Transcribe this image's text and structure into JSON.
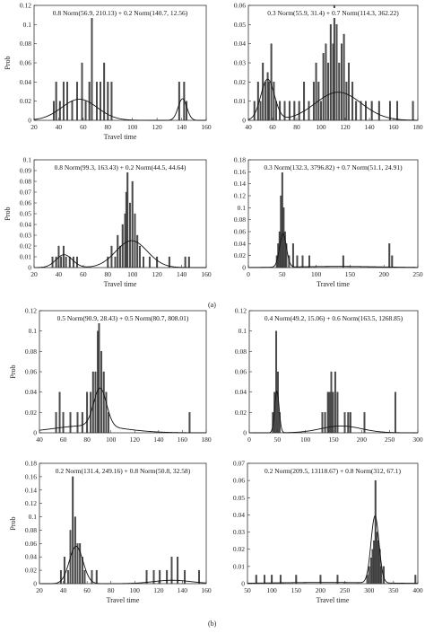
{
  "figure": {
    "group_labels": [
      "(a)",
      "(b)"
    ]
  },
  "chart_data": [
    {
      "type": "bar",
      "title": "0.8 Norm(56.9, 210.13) + 0.2 Norm(140.7, 12.56)",
      "xlabel": "Travel time",
      "ylabel": "Prob",
      "xlim": [
        20,
        160
      ],
      "ylim": [
        0,
        0.12
      ],
      "xticks": [
        20,
        40,
        60,
        80,
        100,
        120,
        140,
        160
      ],
      "yticks": [
        0,
        0.02,
        0.04,
        0.06,
        0.08,
        0.1,
        0.12
      ],
      "bars": [
        {
          "x": 36,
          "y": 0.02
        },
        {
          "x": 38,
          "y": 0.04
        },
        {
          "x": 41,
          "y": 0.02
        },
        {
          "x": 44,
          "y": 0.04
        },
        {
          "x": 47,
          "y": 0.04
        },
        {
          "x": 51,
          "y": 0.02
        },
        {
          "x": 55,
          "y": 0.04
        },
        {
          "x": 59,
          "y": 0.06
        },
        {
          "x": 62,
          "y": 0.02
        },
        {
          "x": 65,
          "y": 0.04
        },
        {
          "x": 67,
          "y": 0.11
        },
        {
          "x": 71,
          "y": 0.04
        },
        {
          "x": 74,
          "y": 0.04
        },
        {
          "x": 77,
          "y": 0.06
        },
        {
          "x": 80,
          "y": 0.04
        },
        {
          "x": 83,
          "y": 0.04
        },
        {
          "x": 138,
          "y": 0.04
        },
        {
          "x": 142,
          "y": 0.04
        },
        {
          "x": 144,
          "y": 0.02
        }
      ],
      "curve": [
        {
          "w": 0.8,
          "mu": 56.9,
          "var": 210.13
        },
        {
          "w": 0.2,
          "mu": 140.7,
          "var": 12.56
        }
      ],
      "grid": false,
      "legend": "none"
    },
    {
      "type": "bar",
      "title": "0.3 Norm(55.9, 31.4) + 0.7 Norm(114.3, 362.22)",
      "xlabel": "",
      "ylabel": "",
      "xlim": [
        40,
        180
      ],
      "ylim": [
        0,
        0.06
      ],
      "xticks": [
        40,
        60,
        80,
        100,
        120,
        140,
        160,
        180
      ],
      "yticks": [
        0,
        0.01,
        0.02,
        0.03,
        0.04,
        0.05,
        0.06
      ],
      "bars": [
        {
          "x": 45,
          "y": 0.01
        },
        {
          "x": 48,
          "y": 0.02
        },
        {
          "x": 50,
          "y": 0.01
        },
        {
          "x": 52,
          "y": 0.03
        },
        {
          "x": 54,
          "y": 0.02
        },
        {
          "x": 56,
          "y": 0.025
        },
        {
          "x": 57,
          "y": 0.02
        },
        {
          "x": 59,
          "y": 0.04
        },
        {
          "x": 61,
          "y": 0.02
        },
        {
          "x": 63,
          "y": 0.01
        },
        {
          "x": 66,
          "y": 0.01
        },
        {
          "x": 70,
          "y": 0.01
        },
        {
          "x": 74,
          "y": 0.01
        },
        {
          "x": 78,
          "y": 0.01
        },
        {
          "x": 82,
          "y": 0.01
        },
        {
          "x": 86,
          "y": 0.02
        },
        {
          "x": 90,
          "y": 0.01
        },
        {
          "x": 94,
          "y": 0.02
        },
        {
          "x": 96,
          "y": 0.03
        },
        {
          "x": 98,
          "y": 0.02
        },
        {
          "x": 100,
          "y": 0.01
        },
        {
          "x": 102,
          "y": 0.035
        },
        {
          "x": 104,
          "y": 0.04
        },
        {
          "x": 106,
          "y": 0.03
        },
        {
          "x": 108,
          "y": 0.05
        },
        {
          "x": 110,
          "y": 0.04
        },
        {
          "x": 111,
          "y": 0.06
        },
        {
          "x": 113,
          "y": 0.05
        },
        {
          "x": 115,
          "y": 0.03
        },
        {
          "x": 117,
          "y": 0.04
        },
        {
          "x": 119,
          "y": 0.045
        },
        {
          "x": 121,
          "y": 0.02
        },
        {
          "x": 123,
          "y": 0.03
        },
        {
          "x": 126,
          "y": 0.02
        },
        {
          "x": 129,
          "y": 0.01
        },
        {
          "x": 133,
          "y": 0.01
        },
        {
          "x": 137,
          "y": 0.01
        },
        {
          "x": 142,
          "y": 0.01
        },
        {
          "x": 148,
          "y": 0.01
        },
        {
          "x": 157,
          "y": 0.01
        },
        {
          "x": 163,
          "y": 0.01
        },
        {
          "x": 176,
          "y": 0.01
        }
      ],
      "curve": [
        {
          "w": 0.3,
          "mu": 55.9,
          "var": 31.4
        },
        {
          "w": 0.7,
          "mu": 114.3,
          "var": 362.22
        }
      ],
      "grid": false,
      "legend": "none"
    },
    {
      "type": "bar",
      "title": "0.8 Norm(99.3, 163.43) + 0.2 Norm(44.5, 44.64)",
      "xlabel": "Travel time",
      "ylabel": "Prob",
      "xlim": [
        20,
        160
      ],
      "ylim": [
        0,
        0.1
      ],
      "xticks": [
        20,
        40,
        60,
        80,
        100,
        120,
        140,
        160
      ],
      "yticks": [
        0,
        0.01,
        0.02,
        0.03,
        0.04,
        0.05,
        0.06,
        0.07,
        0.08,
        0.09,
        0.1
      ],
      "bars": [
        {
          "x": 35,
          "y": 0.01
        },
        {
          "x": 38,
          "y": 0.01
        },
        {
          "x": 40,
          "y": 0.02
        },
        {
          "x": 42,
          "y": 0.01
        },
        {
          "x": 44,
          "y": 0.02
        },
        {
          "x": 46,
          "y": 0.01
        },
        {
          "x": 49,
          "y": 0.01
        },
        {
          "x": 52,
          "y": 0.01
        },
        {
          "x": 55,
          "y": 0.01
        },
        {
          "x": 80,
          "y": 0.01
        },
        {
          "x": 83,
          "y": 0.02
        },
        {
          "x": 86,
          "y": 0.01
        },
        {
          "x": 88,
          "y": 0.03
        },
        {
          "x": 90,
          "y": 0.02
        },
        {
          "x": 92,
          "y": 0.04
        },
        {
          "x": 94,
          "y": 0.05
        },
        {
          "x": 95,
          "y": 0.07
        },
        {
          "x": 96,
          "y": 0.09
        },
        {
          "x": 98,
          "y": 0.06
        },
        {
          "x": 100,
          "y": 0.08
        },
        {
          "x": 102,
          "y": 0.05
        },
        {
          "x": 104,
          "y": 0.03
        },
        {
          "x": 106,
          "y": 0.02
        },
        {
          "x": 109,
          "y": 0.01
        },
        {
          "x": 114,
          "y": 0.01
        },
        {
          "x": 120,
          "y": 0.01
        },
        {
          "x": 130,
          "y": 0.01
        },
        {
          "x": 143,
          "y": 0.01
        },
        {
          "x": 146,
          "y": 0.01
        }
      ],
      "curve": [
        {
          "w": 0.8,
          "mu": 99.3,
          "var": 163.43
        },
        {
          "w": 0.2,
          "mu": 44.5,
          "var": 44.64
        }
      ],
      "grid": false,
      "legend": "none"
    },
    {
      "type": "bar",
      "title": "0.3 Norm(132.3, 3796.82) + 0.7 Norm(51.1, 24.91)",
      "xlabel": "Travel time",
      "ylabel": "",
      "xlim": [
        0,
        250
      ],
      "ylim": [
        0,
        0.18
      ],
      "xticks": [
        0,
        50,
        100,
        150,
        200,
        250
      ],
      "yticks": [
        0,
        0.02,
        0.04,
        0.06,
        0.08,
        0.1,
        0.12,
        0.14,
        0.16,
        0.18
      ],
      "bars": [
        {
          "x": 42,
          "y": 0.02
        },
        {
          "x": 44,
          "y": 0.04
        },
        {
          "x": 46,
          "y": 0.06
        },
        {
          "x": 48,
          "y": 0.12
        },
        {
          "x": 50,
          "y": 0.16
        },
        {
          "x": 52,
          "y": 0.1
        },
        {
          "x": 54,
          "y": 0.06
        },
        {
          "x": 56,
          "y": 0.04
        },
        {
          "x": 60,
          "y": 0.02
        },
        {
          "x": 66,
          "y": 0.04
        },
        {
          "x": 72,
          "y": 0.02
        },
        {
          "x": 80,
          "y": 0.02
        },
        {
          "x": 90,
          "y": 0.02
        },
        {
          "x": 140,
          "y": 0.02
        },
        {
          "x": 208,
          "y": 0.04
        },
        {
          "x": 212,
          "y": 0.02
        }
      ],
      "curve": [
        {
          "w": 0.3,
          "mu": 132.3,
          "var": 3796.82
        },
        {
          "w": 0.7,
          "mu": 51.1,
          "var": 24.91
        }
      ],
      "grid": false,
      "legend": "none"
    },
    {
      "type": "bar",
      "title": "0.5 Norm(90.9, 28.43) + 0.5 Norm(80.7, 808.01)",
      "xlabel": "",
      "ylabel": "Prob",
      "xlim": [
        40,
        180
      ],
      "ylim": [
        0,
        0.12
      ],
      "xticks": [
        40,
        60,
        80,
        100,
        120,
        140,
        160,
        180
      ],
      "yticks": [
        0,
        0.02,
        0.04,
        0.06,
        0.08,
        0.1,
        0.12
      ],
      "bars": [
        {
          "x": 54,
          "y": 0.02
        },
        {
          "x": 57,
          "y": 0.04
        },
        {
          "x": 60,
          "y": 0.02
        },
        {
          "x": 66,
          "y": 0.02
        },
        {
          "x": 72,
          "y": 0.02
        },
        {
          "x": 76,
          "y": 0.02
        },
        {
          "x": 80,
          "y": 0.04
        },
        {
          "x": 83,
          "y": 0.04
        },
        {
          "x": 85,
          "y": 0.06
        },
        {
          "x": 87,
          "y": 0.06
        },
        {
          "x": 89,
          "y": 0.1
        },
        {
          "x": 90,
          "y": 0.11
        },
        {
          "x": 92,
          "y": 0.08
        },
        {
          "x": 94,
          "y": 0.06
        },
        {
          "x": 96,
          "y": 0.04
        },
        {
          "x": 98,
          "y": 0.02
        },
        {
          "x": 166,
          "y": 0.02
        }
      ],
      "curve": [
        {
          "w": 0.5,
          "mu": 90.9,
          "var": 28.43
        },
        {
          "w": 0.5,
          "mu": 80.7,
          "var": 808.01
        }
      ],
      "grid": false,
      "legend": "none"
    },
    {
      "type": "bar",
      "title": "0.4 Norm(49.2, 15.06) + 0.6 Norm(163.5, 1268.85)",
      "xlabel": "",
      "ylabel": "",
      "xlim": [
        0,
        300
      ],
      "ylim": [
        0,
        0.12
      ],
      "xticks": [
        0,
        50,
        100,
        150,
        200,
        250,
        300
      ],
      "yticks": [
        0,
        0.02,
        0.04,
        0.06,
        0.08,
        0.1,
        0.12
      ],
      "bars": [
        {
          "x": 42,
          "y": 0.02
        },
        {
          "x": 45,
          "y": 0.04
        },
        {
          "x": 48,
          "y": 0.1
        },
        {
          "x": 51,
          "y": 0.06
        },
        {
          "x": 54,
          "y": 0.02
        },
        {
          "x": 130,
          "y": 0.02
        },
        {
          "x": 135,
          "y": 0.02
        },
        {
          "x": 140,
          "y": 0.04
        },
        {
          "x": 143,
          "y": 0.04
        },
        {
          "x": 146,
          "y": 0.06
        },
        {
          "x": 149,
          "y": 0.04
        },
        {
          "x": 153,
          "y": 0.06
        },
        {
          "x": 157,
          "y": 0.04
        },
        {
          "x": 170,
          "y": 0.02
        },
        {
          "x": 176,
          "y": 0.02
        },
        {
          "x": 180,
          "y": 0.02
        },
        {
          "x": 205,
          "y": 0.02
        },
        {
          "x": 260,
          "y": 0.04
        }
      ],
      "curve": [
        {
          "w": 0.4,
          "mu": 49.2,
          "var": 15.06
        },
        {
          "w": 0.6,
          "mu": 163.5,
          "var": 1268.85
        }
      ],
      "grid": false,
      "legend": "none"
    },
    {
      "type": "bar",
      "title": "0.2 Norm(131.4, 249.16) + 0.8 Norm(50.8, 32.58)",
      "xlabel": "Travel time",
      "ylabel": "Prob",
      "xlim": [
        20,
        160
      ],
      "ylim": [
        0,
        0.18
      ],
      "xticks": [
        20,
        40,
        60,
        80,
        100,
        120,
        140,
        160
      ],
      "yticks": [
        0,
        0.02,
        0.04,
        0.06,
        0.08,
        0.1,
        0.12,
        0.14,
        0.16,
        0.18
      ],
      "bars": [
        {
          "x": 38,
          "y": 0.02
        },
        {
          "x": 41,
          "y": 0.04
        },
        {
          "x": 44,
          "y": 0.02
        },
        {
          "x": 46,
          "y": 0.08
        },
        {
          "x": 48,
          "y": 0.16
        },
        {
          "x": 50,
          "y": 0.1
        },
        {
          "x": 52,
          "y": 0.06
        },
        {
          "x": 54,
          "y": 0.06
        },
        {
          "x": 56,
          "y": 0.04
        },
        {
          "x": 58,
          "y": 0.02
        },
        {
          "x": 64,
          "y": 0.02
        },
        {
          "x": 68,
          "y": 0.02
        },
        {
          "x": 110,
          "y": 0.02
        },
        {
          "x": 116,
          "y": 0.02
        },
        {
          "x": 121,
          "y": 0.02
        },
        {
          "x": 127,
          "y": 0.02
        },
        {
          "x": 131,
          "y": 0.04
        },
        {
          "x": 136,
          "y": 0.04
        },
        {
          "x": 142,
          "y": 0.02
        },
        {
          "x": 154,
          "y": 0.02
        }
      ],
      "curve": [
        {
          "w": 0.2,
          "mu": 131.4,
          "var": 249.16
        },
        {
          "w": 0.8,
          "mu": 50.8,
          "var": 32.58
        }
      ],
      "grid": false,
      "legend": "none"
    },
    {
      "type": "bar",
      "title": "0.2 Norm(209.5, 13118.67) + 0.8 Norm(312, 67.1)",
      "xlabel": "Travel time",
      "ylabel": "",
      "xlim": [
        50,
        400
      ],
      "ylim": [
        0,
        0.07
      ],
      "xticks": [
        50,
        100,
        150,
        200,
        250,
        300,
        350,
        400
      ],
      "yticks": [
        0,
        0.01,
        0.02,
        0.03,
        0.04,
        0.05,
        0.06,
        0.07
      ],
      "bars": [
        {
          "x": 68,
          "y": 0.005
        },
        {
          "x": 85,
          "y": 0.005
        },
        {
          "x": 100,
          "y": 0.005
        },
        {
          "x": 118,
          "y": 0.005
        },
        {
          "x": 150,
          "y": 0.005
        },
        {
          "x": 200,
          "y": 0.005
        },
        {
          "x": 235,
          "y": 0.005
        },
        {
          "x": 296,
          "y": 0.005
        },
        {
          "x": 300,
          "y": 0.01
        },
        {
          "x": 304,
          "y": 0.015
        },
        {
          "x": 307,
          "y": 0.02
        },
        {
          "x": 310,
          "y": 0.025
        },
        {
          "x": 313,
          "y": 0.06
        },
        {
          "x": 316,
          "y": 0.03
        },
        {
          "x": 319,
          "y": 0.025
        },
        {
          "x": 322,
          "y": 0.02
        },
        {
          "x": 325,
          "y": 0.01
        },
        {
          "x": 330,
          "y": 0.01
        },
        {
          "x": 395,
          "y": 0.005
        }
      ],
      "curve": [
        {
          "w": 0.2,
          "mu": 209.5,
          "var": 13118.67
        },
        {
          "w": 0.8,
          "mu": 312,
          "var": 67.1
        }
      ],
      "grid": false,
      "legend": "none"
    }
  ]
}
